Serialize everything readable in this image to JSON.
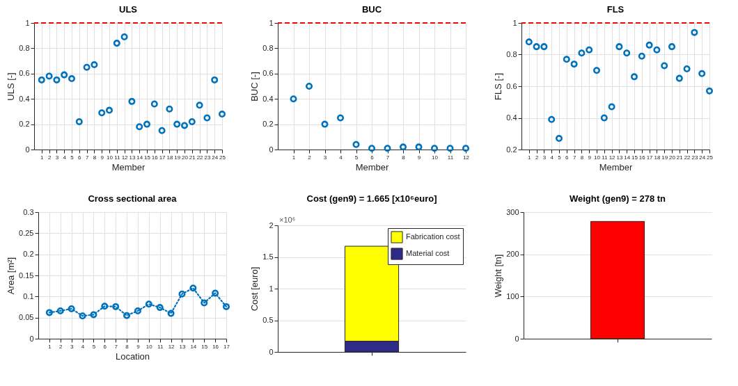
{
  "chart_data": [
    {
      "type": "scatter",
      "title": "ULS",
      "xlabel": "Member",
      "ylabel": "ULS [-]",
      "x": [
        1,
        2,
        3,
        4,
        5,
        6,
        7,
        8,
        9,
        10,
        11,
        12,
        13,
        14,
        15,
        16,
        17,
        18,
        19,
        20,
        21,
        22,
        23,
        24,
        25
      ],
      "series": [
        {
          "color": "#0072bd",
          "values": [
            0.55,
            0.58,
            0.55,
            0.59,
            0.56,
            0.22,
            0.65,
            0.67,
            0.29,
            0.31,
            0.84,
            0.89,
            0.38,
            0.18,
            0.2,
            0.36,
            0.15,
            0.32,
            0.2,
            0.19,
            0.22,
            0.35,
            0.25,
            0.55,
            0.28
          ]
        }
      ],
      "xlim": [
        0,
        25
      ],
      "xticks": [
        1,
        2,
        3,
        4,
        5,
        6,
        7,
        8,
        9,
        10,
        11,
        12,
        13,
        14,
        15,
        16,
        17,
        18,
        19,
        20,
        21,
        22,
        23,
        24,
        25
      ],
      "ylim": [
        0,
        1
      ],
      "yticks": [
        0,
        0.2,
        0.4,
        0.6,
        0.8,
        1
      ],
      "grid": true,
      "marker": "circle",
      "ref_lines": [
        {
          "axis": "y",
          "value": 1,
          "color": "#ff0000",
          "line_style": "dashed"
        }
      ]
    },
    {
      "type": "scatter",
      "title": "BUC",
      "xlabel": "Member",
      "ylabel": "BUC [-]",
      "x": [
        1,
        2,
        3,
        4,
        5,
        6,
        7,
        8,
        9,
        10,
        11,
        12
      ],
      "series": [
        {
          "color": "#0072bd",
          "values": [
            0.4,
            0.5,
            0.2,
            0.25,
            0.04,
            0.01,
            0.01,
            0.02,
            0.02,
            0.01,
            0.01,
            0.01
          ]
        }
      ],
      "xlim": [
        0,
        12
      ],
      "xticks": [
        1,
        2,
        3,
        4,
        5,
        6,
        7,
        8,
        9,
        10,
        11,
        12
      ],
      "ylim": [
        0,
        1
      ],
      "yticks": [
        0,
        0.2,
        0.4,
        0.6,
        0.8,
        1
      ],
      "grid": true,
      "marker": "circle",
      "ref_lines": [
        {
          "axis": "y",
          "value": 1,
          "color": "#ff0000",
          "line_style": "dashed"
        }
      ]
    },
    {
      "type": "scatter",
      "title": "FLS",
      "xlabel": "Member",
      "ylabel": "FLS [-]",
      "x": [
        1,
        2,
        3,
        4,
        5,
        6,
        7,
        8,
        9,
        10,
        11,
        12,
        13,
        14,
        15,
        16,
        17,
        18,
        19,
        20,
        21,
        22,
        23,
        24,
        25
      ],
      "series": [
        {
          "color": "#0072bd",
          "values": [
            0.88,
            0.85,
            0.85,
            0.39,
            0.27,
            0.77,
            0.74,
            0.81,
            0.83,
            0.7,
            0.4,
            0.47,
            0.85,
            0.81,
            0.66,
            0.79,
            0.86,
            0.83,
            0.73,
            0.85,
            0.65,
            0.71,
            0.94,
            0.68,
            0.57
          ]
        }
      ],
      "xlim": [
        0,
        25
      ],
      "xticks": [
        1,
        2,
        3,
        4,
        5,
        6,
        7,
        8,
        9,
        10,
        11,
        12,
        13,
        14,
        15,
        16,
        17,
        18,
        19,
        20,
        21,
        22,
        23,
        24,
        25
      ],
      "ylim": [
        0.2,
        1
      ],
      "yticks": [
        0.2,
        0.4,
        0.6,
        0.8,
        1
      ],
      "grid": true,
      "marker": "circle",
      "ref_lines": [
        {
          "axis": "y",
          "value": 1,
          "color": "#ff0000",
          "line_style": "dashed"
        }
      ]
    },
    {
      "type": "line",
      "title": "Cross sectional area",
      "xlabel": "Location",
      "ylabel": "Area [m²]",
      "x": [
        1,
        2,
        3,
        4,
        5,
        6,
        7,
        8,
        9,
        10,
        11,
        12,
        13,
        14,
        15,
        16,
        17
      ],
      "series": [
        {
          "color": "#0072bd",
          "values": [
            0.062,
            0.066,
            0.071,
            0.054,
            0.057,
            0.077,
            0.076,
            0.055,
            0.066,
            0.082,
            0.074,
            0.06,
            0.106,
            0.12,
            0.085,
            0.108,
            0.076
          ]
        }
      ],
      "xlim": [
        0,
        17
      ],
      "xticks": [
        1,
        2,
        3,
        4,
        5,
        6,
        7,
        8,
        9,
        10,
        11,
        12,
        13,
        14,
        15,
        16,
        17
      ],
      "ylim": [
        0,
        0.3
      ],
      "yticks": [
        0,
        0.05,
        0.1,
        0.15,
        0.2,
        0.25,
        0.3
      ],
      "grid": true,
      "marker": "circle",
      "line_style": "dotted"
    },
    {
      "type": "bar",
      "stacked": true,
      "title": "Cost (gen9) = 1.665 [x10⁶euro]",
      "ylabel": "Cost [euro]",
      "categories": [
        null
      ],
      "series": [
        {
          "name": "Material cost",
          "color": "#2e2a87",
          "values": [
            0.17
          ]
        },
        {
          "name": "Fabrication cost",
          "color": "#ffff00",
          "values": [
            1.5
          ]
        }
      ],
      "ylim": [
        0,
        2
      ],
      "yticks": [
        0,
        0.5,
        1,
        1.5,
        2
      ],
      "grid": "y",
      "legend": "top right",
      "tick_labels": "y",
      "annotations": [
        "×10⁶"
      ]
    },
    {
      "type": "bar",
      "title": "Weight (gen9) = 278 tn",
      "ylabel": "Weight [tn]",
      "categories": [
        null
      ],
      "values": [
        278
      ],
      "color": "#ff0000",
      "ylim": [
        0,
        300
      ],
      "yticks": [
        0,
        100,
        200,
        300
      ],
      "grid": "y",
      "tick_labels": "y"
    }
  ]
}
